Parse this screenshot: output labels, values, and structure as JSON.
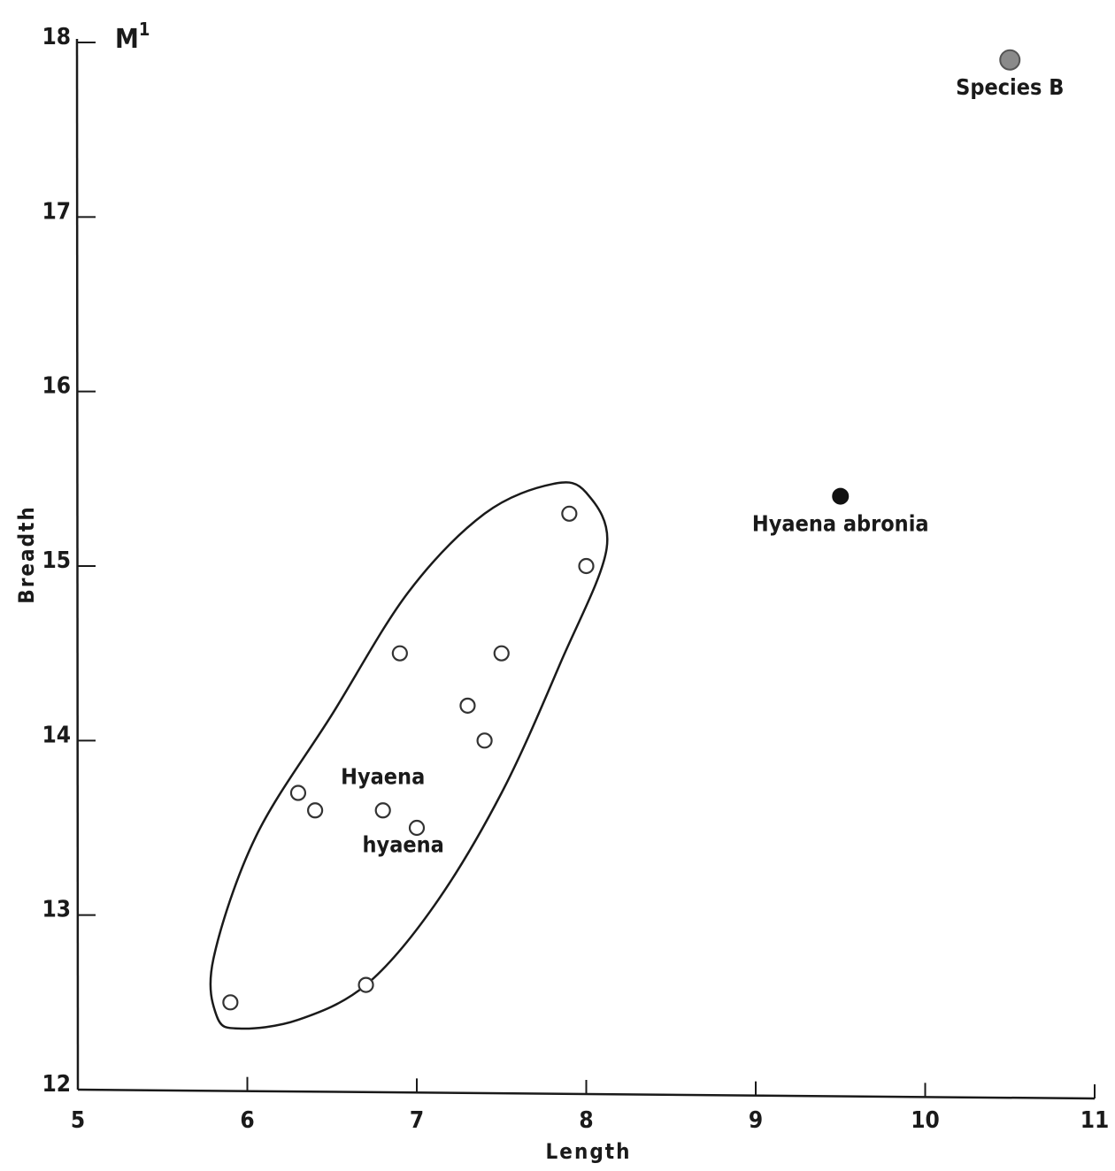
{
  "chart_data": {
    "type": "scatter",
    "title": "M",
    "title_superscript": "1",
    "xlabel": "Length",
    "ylabel": "Breadth",
    "xlim": [
      5,
      11
    ],
    "ylim": [
      12,
      18
    ],
    "x_ticks": [
      5,
      6,
      7,
      8,
      9,
      10,
      11
    ],
    "y_ticks": [
      12,
      13,
      14,
      15,
      16,
      17,
      18
    ],
    "x_tick_labels": [
      "5",
      "6",
      "7",
      "8",
      "9",
      "10",
      "11"
    ],
    "y_tick_labels": [
      "12",
      "13",
      "14",
      "15",
      "16",
      "17",
      "18"
    ],
    "grid": false,
    "series": [
      {
        "name": "Hyaena hyaena",
        "marker": "open-circle",
        "points": [
          {
            "x": 5.9,
            "y": 12.5
          },
          {
            "x": 6.3,
            "y": 13.7
          },
          {
            "x": 6.4,
            "y": 13.6
          },
          {
            "x": 6.7,
            "y": 12.6
          },
          {
            "x": 6.8,
            "y": 13.6
          },
          {
            "x": 6.9,
            "y": 14.5
          },
          {
            "x": 7.0,
            "y": 13.5
          },
          {
            "x": 7.3,
            "y": 14.2
          },
          {
            "x": 7.4,
            "y": 14.0
          },
          {
            "x": 7.5,
            "y": 14.5
          },
          {
            "x": 7.9,
            "y": 15.3
          },
          {
            "x": 8.0,
            "y": 15.0
          }
        ]
      },
      {
        "name": "Hyaena abronia",
        "marker": "filled-circle",
        "points": [
          {
            "x": 9.5,
            "y": 15.4
          }
        ]
      },
      {
        "name": "Species B",
        "marker": "grey-circle",
        "points": [
          {
            "x": 10.5,
            "y": 17.9
          }
        ]
      }
    ],
    "annotations": [
      {
        "text": "Hyaena",
        "x": 6.8,
        "y": 13.75
      },
      {
        "text": "hyaena",
        "x": 6.92,
        "y": 13.36
      },
      {
        "text": "Hyaena abronia",
        "x": 9.5,
        "y": 15.2
      },
      {
        "text": "Species B",
        "x": 10.5,
        "y": 17.7
      }
    ],
    "envelope": {
      "encloses": "Hyaena hyaena",
      "points": [
        [
          5.95,
          12.35
        ],
        [
          6.3,
          12.4
        ],
        [
          6.7,
          12.6
        ],
        [
          7.1,
          13.05
        ],
        [
          7.5,
          13.7
        ],
        [
          7.85,
          14.45
        ],
        [
          8.12,
          15.1
        ],
        [
          8.0,
          15.42
        ],
        [
          7.8,
          15.47
        ],
        [
          7.4,
          15.3
        ],
        [
          6.95,
          14.85
        ],
        [
          6.5,
          14.15
        ],
        [
          6.05,
          13.45
        ],
        [
          5.8,
          12.75
        ],
        [
          5.82,
          12.42
        ]
      ]
    },
    "colors": {
      "axis": "#1a1a1a",
      "open_marker_stroke": "#333333",
      "filled_marker": "#111111",
      "grey_marker": "#8a8a8a"
    }
  }
}
